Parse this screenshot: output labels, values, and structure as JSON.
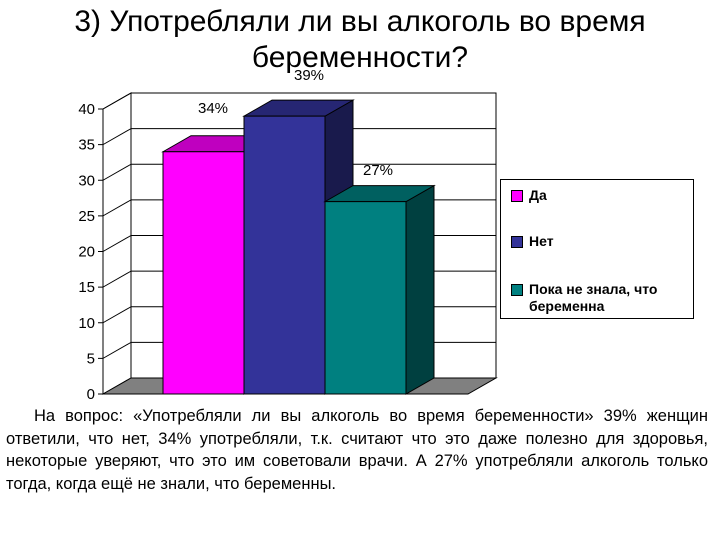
{
  "slide": {
    "title": "3) Употребляли ли вы алкоголь во время беременности?",
    "caption": "На вопрос: «Употребляли ли вы алкоголь во время беременности» 39% женщин ответили, что нет, 34% употребляли, т.к. считают что это даже полезно для здоровья, некоторые уверяют, что это им советовали врачи. А 27% употребляли алкоголь только тогда, когда ещё не знали, что беременны."
  },
  "chart_data": {
    "type": "bar",
    "style": "3d",
    "ylim": [
      0,
      40
    ],
    "yticks": [
      0,
      5,
      10,
      15,
      20,
      25,
      30,
      35,
      40
    ],
    "grid": true,
    "legend_position": "right",
    "series": [
      {
        "name": "Да",
        "value": 34,
        "label": "34%",
        "color": "#ff00ff",
        "side_color": "#800080",
        "top_color": "#bf00bf"
      },
      {
        "name": "Нет",
        "value": 39,
        "label": "39%",
        "color": "#333399",
        "side_color": "#191a4c",
        "top_color": "#262673"
      },
      {
        "name": "Пока не знала, что беременна",
        "value": 27,
        "label": "27%",
        "color": "#008080",
        "side_color": "#004040",
        "top_color": "#006060"
      }
    ]
  }
}
